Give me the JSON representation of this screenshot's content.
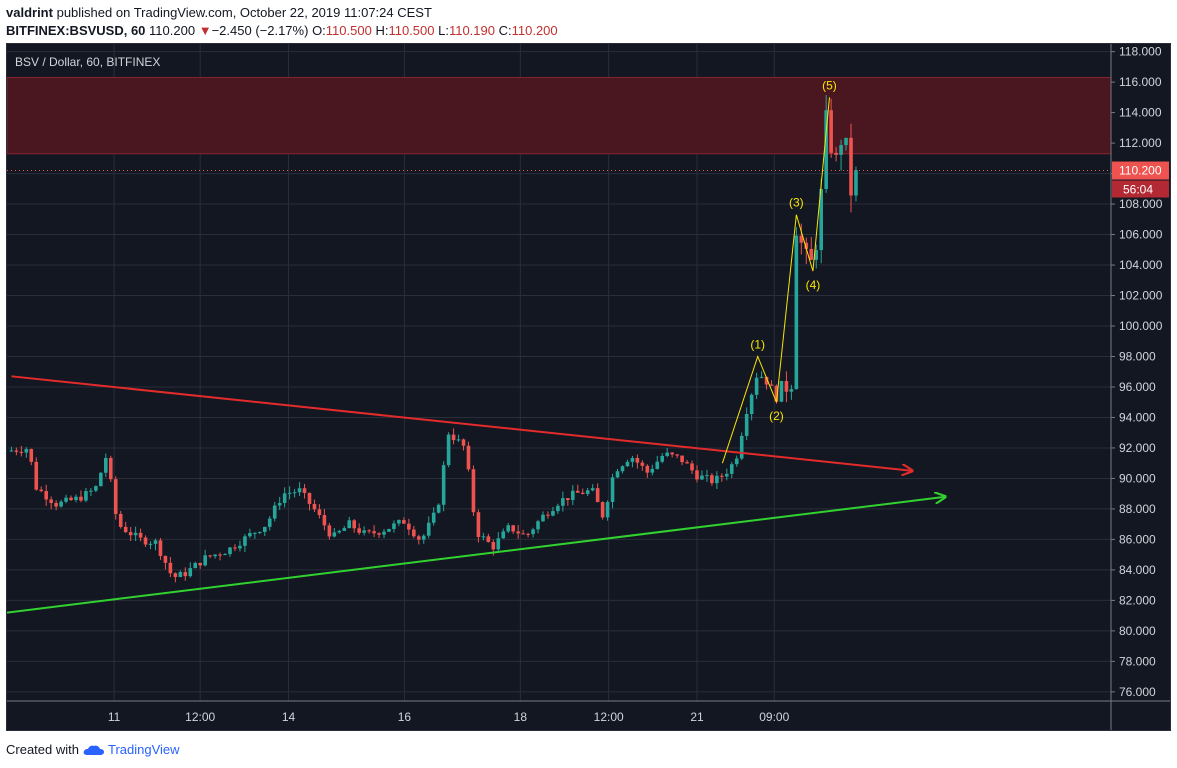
{
  "header": {
    "author": "valdrint",
    "published_text": "published on TradingView.com, October 22, 2019 11:07:24 CEST",
    "symbol": "BITFINEX:BSVUSD, 60",
    "last": "110.200",
    "change_arrow": "▼",
    "change": "−2.450 (−2.17%)",
    "o_label": "O:",
    "o_value": "110.500",
    "h_label": "H:",
    "h_value": "110.500",
    "l_label": "L:",
    "l_value": "110.190",
    "c_label": "C:",
    "c_value": "110.200"
  },
  "footer": {
    "created_with": "Created with",
    "brand": "TradingView"
  },
  "colors": {
    "background": "#131722",
    "up": "#26a69a",
    "down": "#ef5350",
    "resistance_zone": "#4a1620",
    "red_trendline": "#e32b2b",
    "green_trendline": "#31d22f",
    "wave": "#f7e600",
    "price_label": "#ef5350"
  },
  "chart_data": {
    "type": "candlestick",
    "title": "BSV / Dollar, 60, BITFINEX",
    "x_tick_labels": [
      "11",
      "12:00",
      "14",
      "16",
      "18",
      "12:00",
      "21",
      "09:00"
    ],
    "y_tick_labels": [
      "76.000",
      "78.000",
      "80.000",
      "82.000",
      "84.000",
      "86.000",
      "88.000",
      "90.000",
      "92.000",
      "94.000",
      "96.000",
      "98.000",
      "100.000",
      "102.000",
      "104.000",
      "106.000",
      "108.000",
      "110.000",
      "112.000",
      "114.000",
      "116.000",
      "118.000"
    ],
    "ylim": [
      75.4,
      118.5
    ],
    "current_price": "110.200",
    "countdown": "56:04",
    "resistance_zone": [
      111.3,
      116.3
    ],
    "trendlines": [
      {
        "name": "descending resistance",
        "points": [
          [
            0.4,
            96.7
          ],
          [
            82.0,
            90.5
          ]
        ]
      },
      {
        "name": "ascending support",
        "points": [
          [
            0.0,
            81.2
          ],
          [
            85.0,
            88.8
          ]
        ]
      }
    ],
    "elliott_waves": [
      {
        "label": "(1)",
        "x": 68.0,
        "price": 98.0
      },
      {
        "label": "(2)",
        "x": 69.7,
        "price": 95.0
      },
      {
        "label": "(3)",
        "x": 71.5,
        "price": 107.3
      },
      {
        "label": "(4)",
        "x": 73.0,
        "price": 103.6
      },
      {
        "label": "(5)",
        "x": 74.5,
        "price": 115.0
      }
    ],
    "wave_start": {
      "x": 64.8,
      "price": 91.0
    },
    "close_path": [
      [
        0.0,
        91.8
      ],
      [
        2.0,
        92.0
      ],
      [
        2.5,
        89.5
      ],
      [
        4.5,
        88.3
      ],
      [
        6.5,
        88.7
      ],
      [
        8.0,
        89.3
      ],
      [
        9.0,
        91.5
      ],
      [
        10.0,
        87.0
      ],
      [
        12.0,
        86.0
      ],
      [
        13.5,
        85.8
      ],
      [
        15.0,
        83.5
      ],
      [
        16.0,
        83.7
      ],
      [
        18.0,
        84.8
      ],
      [
        20.0,
        85.3
      ],
      [
        22.0,
        86.3
      ],
      [
        23.5,
        87.0
      ],
      [
        25.0,
        89.0
      ],
      [
        26.5,
        89.2
      ],
      [
        28.0,
        87.8
      ],
      [
        29.5,
        86.1
      ],
      [
        31.0,
        87.0
      ],
      [
        32.5,
        86.3
      ],
      [
        34.0,
        86.6
      ],
      [
        36.0,
        87.2
      ],
      [
        37.5,
        85.9
      ],
      [
        39.0,
        88.0
      ],
      [
        40.0,
        93.0
      ],
      [
        41.5,
        92.0
      ],
      [
        42.5,
        86.5
      ],
      [
        44.0,
        85.5
      ],
      [
        45.5,
        86.8
      ],
      [
        47.0,
        86.2
      ],
      [
        48.5,
        87.5
      ],
      [
        50.0,
        88.5
      ],
      [
        51.5,
        89.0
      ],
      [
        53.0,
        89.2
      ],
      [
        54.0,
        87.5
      ],
      [
        55.0,
        90.5
      ],
      [
        56.5,
        91.5
      ],
      [
        58.0,
        90.4
      ],
      [
        59.5,
        91.6
      ],
      [
        61.0,
        91.3
      ],
      [
        62.5,
        90.2
      ],
      [
        64.0,
        89.8
      ],
      [
        65.0,
        90.3
      ],
      [
        66.0,
        91.2
      ],
      [
        67.0,
        94.5
      ],
      [
        68.0,
        97.0
      ],
      [
        69.0,
        96.2
      ],
      [
        69.7,
        95.3
      ],
      [
        70.5,
        96.0
      ],
      [
        71.2,
        96.5
      ],
      [
        71.5,
        106.5
      ],
      [
        72.3,
        104.5
      ],
      [
        73.0,
        104.0
      ],
      [
        73.6,
        107.0
      ],
      [
        74.2,
        113.5
      ],
      [
        75.0,
        110.5
      ],
      [
        75.8,
        113.0
      ],
      [
        76.5,
        108.5
      ],
      [
        77.0,
        110.2
      ]
    ]
  }
}
